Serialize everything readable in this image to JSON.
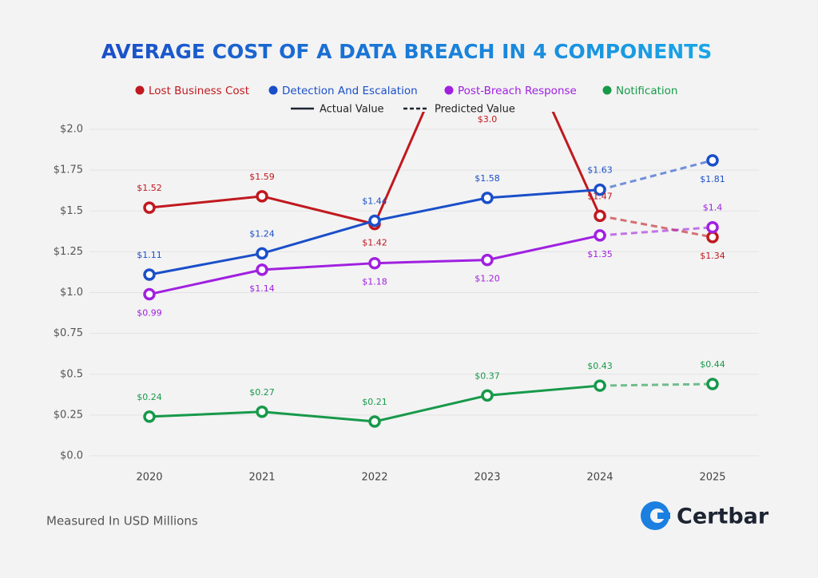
{
  "chart_data": {
    "type": "line",
    "title": "AVERAGE COST OF A DATA BREACH IN 4 COMPONENTS",
    "categories": [
      "2020",
      "2021",
      "2022",
      "2023",
      "2024",
      "2025"
    ],
    "series": [
      {
        "name": "Lost Business Cost",
        "color": "#c0191f",
        "values": [
          1.52,
          1.59,
          1.42,
          3.0,
          1.47,
          1.34
        ],
        "value_labels": [
          "$1.52",
          "$1.59",
          "$1.42",
          "$3.0",
          "$1.47",
          "$1.34"
        ]
      },
      {
        "name": "Detection And Escalation",
        "color": "#1a4fc9",
        "values": [
          1.11,
          1.24,
          1.44,
          1.58,
          1.63,
          1.81
        ],
        "value_labels": [
          "$1.11",
          "$1.24",
          "$1.44",
          "$1.58",
          "$1.63",
          "$1.81"
        ]
      },
      {
        "name": "Post-Breach Response",
        "color": "#a020e0",
        "values": [
          0.99,
          1.14,
          1.18,
          1.2,
          1.35,
          1.4
        ],
        "value_labels": [
          "$0.99",
          "$1.14",
          "$1.18",
          "$1.20",
          "$1.35",
          "$1.4"
        ]
      },
      {
        "name": "Notification",
        "color": "#17994a",
        "values": [
          0.24,
          0.27,
          0.21,
          0.37,
          0.43,
          0.44
        ],
        "value_labels": [
          "$0.24",
          "$0.27",
          "$0.21",
          "$0.37",
          "$0.43",
          "$0.44"
        ]
      }
    ],
    "line_styles": {
      "actual": "Actual Value",
      "predicted": "Predicted Value"
    },
    "predicted_from": "2024",
    "ylim": [
      0,
      2.0
    ],
    "yticks": [
      {
        "value": 0,
        "label": "$0.0"
      },
      {
        "value": 0.25,
        "label": "$0.25"
      },
      {
        "value": 0.5,
        "label": "$0.5"
      },
      {
        "value": 0.75,
        "label": "$0.75"
      },
      {
        "value": 1.0,
        "label": "$1.0"
      },
      {
        "value": 1.25,
        "label": "$1.25"
      },
      {
        "value": 1.5,
        "label": "$1.5"
      },
      {
        "value": 1.75,
        "label": "$1.75"
      },
      {
        "value": 2.0,
        "label": "$2.0"
      }
    ],
    "grid": true,
    "note": "Measured In USD Millions",
    "brand": "Certbar"
  }
}
